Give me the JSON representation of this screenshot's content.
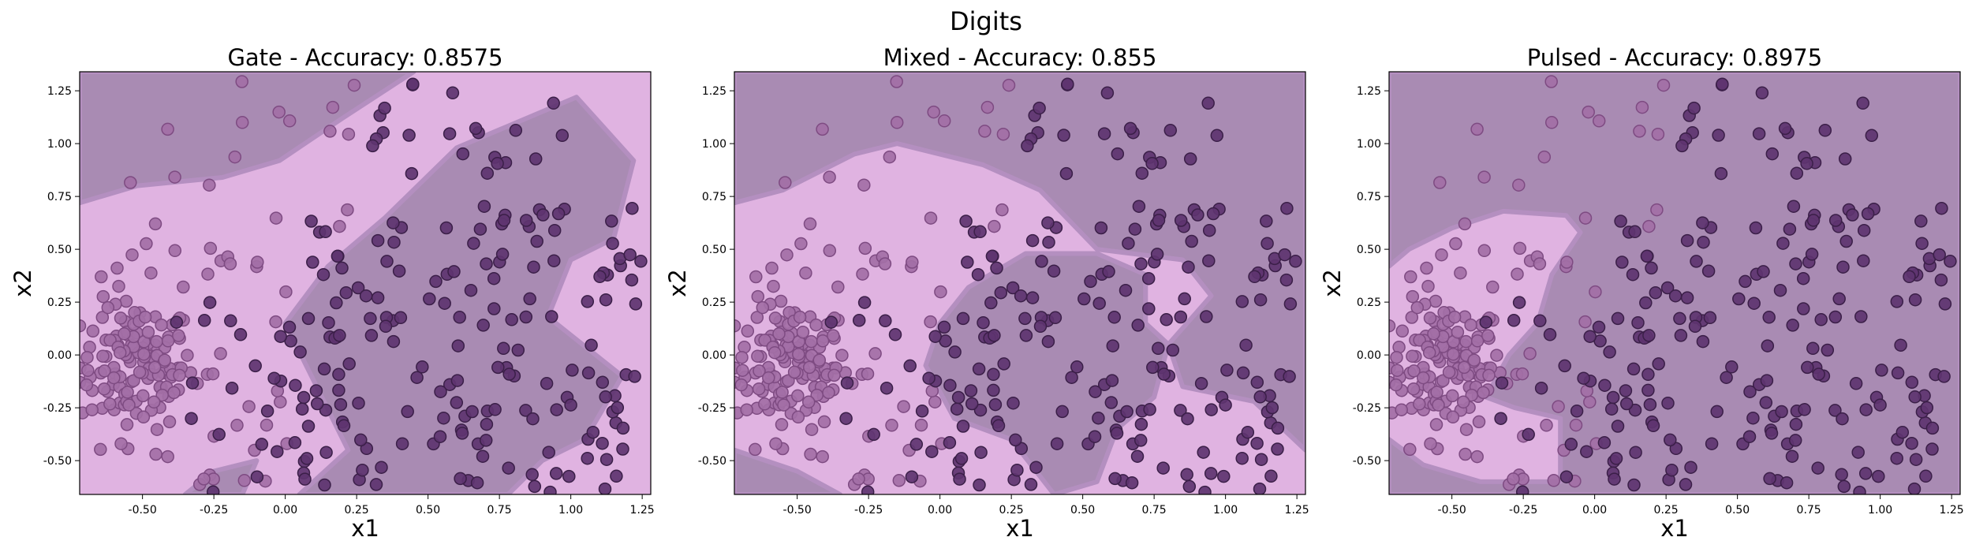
{
  "figure": {
    "suptitle": "Digits"
  },
  "colors": {
    "region_dark": "#a98bb3",
    "region_light": "#e0b3e1",
    "point_light": "#a36fa6",
    "point_light_edge": "#7e4b82",
    "point_dark": "#5e3470",
    "point_dark_edge": "#3b1f48"
  },
  "chart_data": [
    {
      "type": "scatter",
      "title": "Gate - Accuracy: 0.8575",
      "xlabel": "x1",
      "ylabel": "x2",
      "xlim": [
        -0.72,
        1.28
      ],
      "ylim": [
        -0.66,
        1.34
      ],
      "xticks": [
        "-0.50",
        "-0.25",
        "0.00",
        "0.25",
        "0.50",
        "0.75",
        "1.00",
        "1.25"
      ],
      "yticks": [
        "-0.50",
        "-0.25",
        "0.00",
        "0.25",
        "0.50",
        "0.75",
        "1.00",
        "1.25"
      ],
      "grid": false,
      "dark_regions": [
        [
          [
            -0.72,
            1.34
          ],
          [
            0.45,
            1.34
          ],
          [
            0.2,
            1.12
          ],
          [
            -0.02,
            0.92
          ],
          [
            -0.22,
            0.84
          ],
          [
            -0.52,
            0.8
          ],
          [
            -0.72,
            0.72
          ]
        ],
        [
          [
            0.05,
            -0.66
          ],
          [
            0.22,
            -0.45
          ],
          [
            0.0,
            0.15
          ],
          [
            0.15,
            0.42
          ],
          [
            0.35,
            0.65
          ],
          [
            0.6,
            0.98
          ],
          [
            1.02,
            1.22
          ],
          [
            1.22,
            0.92
          ],
          [
            1.15,
            0.55
          ],
          [
            1.0,
            0.45
          ],
          [
            0.92,
            0.18
          ],
          [
            1.18,
            -0.1
          ],
          [
            1.05,
            -0.4
          ],
          [
            0.9,
            -0.5
          ],
          [
            0.78,
            -0.66
          ]
        ],
        [
          [
            -0.35,
            -0.66
          ],
          [
            -0.15,
            -0.66
          ],
          [
            -0.1,
            -0.5
          ],
          [
            -0.25,
            -0.55
          ]
        ]
      ]
    },
    {
      "type": "scatter",
      "title": "Mixed - Accuracy: 0.855",
      "xlabel": "x1",
      "ylabel": "x2",
      "xlim": [
        -0.72,
        1.28
      ],
      "ylim": [
        -0.66,
        1.34
      ],
      "xticks": [
        "-0.50",
        "-0.25",
        "0.00",
        "0.25",
        "0.50",
        "0.75",
        "1.00",
        "1.25"
      ],
      "yticks": [
        "-0.50",
        "-0.25",
        "0.00",
        "0.25",
        "0.50",
        "0.75",
        "1.00",
        "1.25"
      ],
      "grid": false,
      "dark_regions": [
        [
          [
            -0.72,
            1.34
          ],
          [
            1.28,
            1.34
          ],
          [
            1.28,
            -0.45
          ],
          [
            1.1,
            -0.22
          ],
          [
            0.85,
            -0.15
          ],
          [
            0.8,
            0.05
          ],
          [
            0.95,
            0.28
          ],
          [
            0.85,
            0.45
          ],
          [
            0.55,
            0.5
          ],
          [
            0.35,
            0.78
          ],
          [
            0.15,
            0.9
          ],
          [
            -0.15,
            1.0
          ],
          [
            -0.3,
            0.95
          ],
          [
            -0.55,
            0.78
          ],
          [
            -0.72,
            0.72
          ]
        ],
        [
          [
            -0.05,
            -0.05
          ],
          [
            0.0,
            0.15
          ],
          [
            0.1,
            0.32
          ],
          [
            0.3,
            0.48
          ],
          [
            0.55,
            0.48
          ],
          [
            0.72,
            0.38
          ],
          [
            0.72,
            0.15
          ],
          [
            0.8,
            0.05
          ],
          [
            0.75,
            -0.2
          ],
          [
            0.62,
            -0.35
          ],
          [
            0.55,
            -0.6
          ],
          [
            0.4,
            -0.66
          ],
          [
            0.25,
            -0.4
          ],
          [
            0.05,
            -0.3
          ]
        ],
        [
          [
            -0.72,
            -0.66
          ],
          [
            -0.35,
            -0.66
          ],
          [
            -0.5,
            -0.55
          ],
          [
            -0.72,
            -0.45
          ]
        ]
      ]
    },
    {
      "type": "scatter",
      "title": "Pulsed - Accuracy: 0.8975",
      "xlabel": "x1",
      "ylabel": "x2",
      "xlim": [
        -0.72,
        1.28
      ],
      "ylim": [
        -0.66,
        1.34
      ],
      "xticks": [
        "-0.50",
        "-0.25",
        "0.00",
        "0.25",
        "0.50",
        "0.75",
        "1.00",
        "1.25"
      ],
      "yticks": [
        "-0.50",
        "-0.25",
        "0.00",
        "0.25",
        "0.50",
        "0.75",
        "1.00",
        "1.25"
      ],
      "grid": false,
      "dark_regions": [
        [
          [
            -0.72,
            1.34
          ],
          [
            1.28,
            1.34
          ],
          [
            1.28,
            -0.66
          ],
          [
            -0.72,
            -0.66
          ],
          [
            -0.72,
            -0.4
          ],
          [
            -0.6,
            -0.52
          ],
          [
            -0.4,
            -0.6
          ],
          [
            -0.12,
            -0.6
          ],
          [
            -0.12,
            -0.3
          ],
          [
            -0.28,
            -0.25
          ],
          [
            -0.38,
            -0.2
          ],
          [
            -0.3,
            0.0
          ],
          [
            -0.2,
            0.15
          ],
          [
            -0.15,
            0.38
          ],
          [
            -0.05,
            0.58
          ],
          [
            -0.1,
            0.66
          ],
          [
            -0.32,
            0.68
          ],
          [
            -0.5,
            0.6
          ],
          [
            -0.65,
            0.5
          ],
          [
            -0.72,
            0.42
          ]
        ]
      ]
    }
  ]
}
